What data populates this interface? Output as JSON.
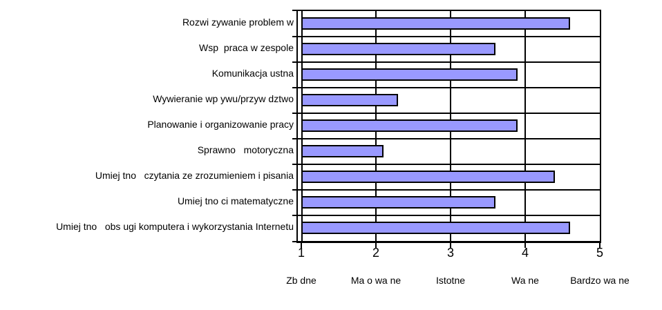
{
  "chart_data": {
    "type": "bar",
    "orientation": "horizontal",
    "title": "",
    "categories": [
      "Rozwi zywanie problem w",
      "Wsp  praca w zespole",
      "Komunikacja ustna",
      "Wywieranie wp ywu/przyw dztwo",
      "Planowanie i organizowanie pracy",
      "Sprawno   motoryczna",
      "Umiej tno   czytania ze zrozumieniem i pisania",
      "Umiej tno ci matematyczne",
      "Umiej tno   obs ugi komputera i wykorzystania Internetu"
    ],
    "values": [
      4.6,
      3.6,
      3.9,
      2.3,
      3.9,
      2.1,
      4.4,
      3.6,
      4.6
    ],
    "xlabel": "",
    "ylabel": "",
    "xlim": [
      1,
      5
    ],
    "xticks": [
      1,
      2,
      3,
      4,
      5
    ],
    "xtick_labels": [
      "1",
      "2",
      "3",
      "4",
      "5"
    ],
    "xscale_words": [
      "Zb dne",
      "Ma o wa ne",
      "Istotne",
      "Wa ne",
      "Bardzo wa ne"
    ],
    "grid": "vertical gridlines at each integer, horizontal separators between categories",
    "legend": "none",
    "bar_color": "#9999FF",
    "bar_border_color": "#000000",
    "background_color": "#FFFFFF"
  }
}
